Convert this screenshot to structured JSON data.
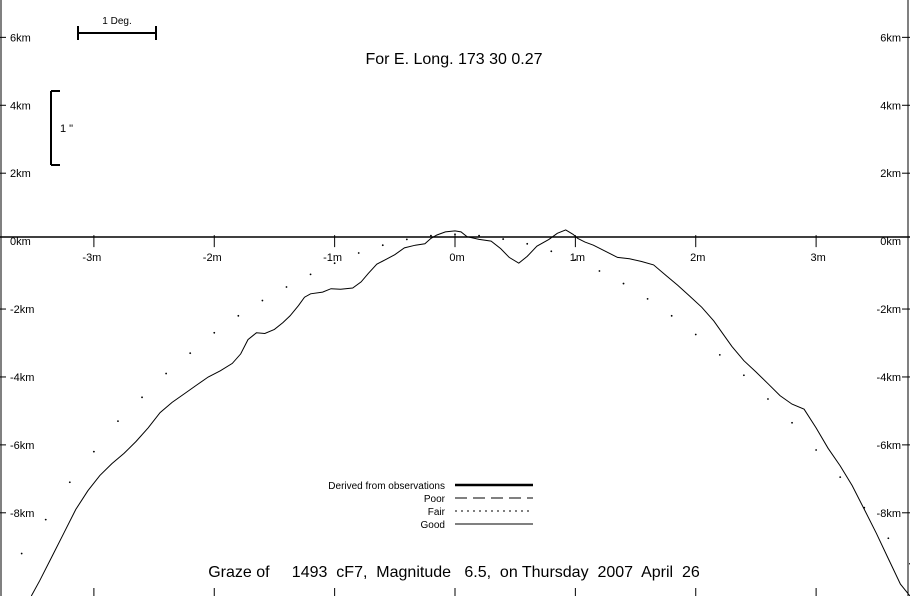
{
  "chart_data": {
    "type": "line",
    "title": "For E. Long.  173 30  0.27",
    "footer": "Graze of     1493  cF7,  Magnitude   6.5,  on Thursday  2007  April  26",
    "scale_bar": {
      "label": "1 Deg."
    },
    "arcsec_bar": {
      "label": "1 \""
    },
    "x_ticks": [
      {
        "v": -3,
        "label": "-3m"
      },
      {
        "v": -2,
        "label": "-2m"
      },
      {
        "v": -1,
        "label": "-1m"
      },
      {
        "v": 0,
        "label": "0m"
      },
      {
        "v": 1,
        "label": "1m"
      },
      {
        "v": 2,
        "label": "2m"
      },
      {
        "v": 3,
        "label": "3m"
      }
    ],
    "y_ticks": [
      {
        "v": 6,
        "label": "6km"
      },
      {
        "v": 4,
        "label": "4km"
      },
      {
        "v": 2,
        "label": "2km"
      },
      {
        "v": 0,
        "label": "0km"
      },
      {
        "v": -2,
        "label": "-2km"
      },
      {
        "v": -4,
        "label": "-4km"
      },
      {
        "v": -6,
        "label": "-6km"
      },
      {
        "v": -8,
        "label": "-8km"
      }
    ],
    "xlim": [
      -3.78,
      3.78
    ],
    "ylim": [
      -10.45,
      7.1
    ],
    "legend": {
      "position": "bottom-center",
      "entries": [
        {
          "label": "Derived from observations",
          "style": "thick"
        },
        {
          "label": "Poor",
          "style": "dashed"
        },
        {
          "label": "Fair",
          "style": "dotted"
        },
        {
          "label": "Good",
          "style": "thin"
        }
      ]
    },
    "series": [
      {
        "style": "thin",
        "points": [
          [
            -3.52,
            -10.45
          ],
          [
            -3.45,
            -10.0
          ],
          [
            -3.35,
            -9.3
          ],
          [
            -3.25,
            -8.6
          ],
          [
            -3.15,
            -7.9
          ],
          [
            -3.05,
            -7.35
          ],
          [
            -2.95,
            -6.9
          ],
          [
            -2.85,
            -6.55
          ],
          [
            -2.75,
            -6.25
          ],
          [
            -2.65,
            -5.9
          ],
          [
            -2.55,
            -5.5
          ],
          [
            -2.45,
            -5.05
          ],
          [
            -2.35,
            -4.75
          ],
          [
            -2.25,
            -4.5
          ],
          [
            -2.15,
            -4.25
          ],
          [
            -2.05,
            -4.0
          ],
          [
            -1.95,
            -3.82
          ],
          [
            -1.85,
            -3.6
          ],
          [
            -1.78,
            -3.32
          ],
          [
            -1.72,
            -2.9
          ],
          [
            -1.65,
            -2.7
          ],
          [
            -1.58,
            -2.72
          ],
          [
            -1.5,
            -2.6
          ],
          [
            -1.43,
            -2.4
          ],
          [
            -1.37,
            -2.2
          ],
          [
            -1.3,
            -1.9
          ],
          [
            -1.25,
            -1.65
          ],
          [
            -1.2,
            -1.55
          ],
          [
            -1.1,
            -1.5
          ],
          [
            -1.03,
            -1.4
          ],
          [
            -0.95,
            -1.42
          ],
          [
            -0.85,
            -1.38
          ],
          [
            -0.78,
            -1.2
          ],
          [
            -0.72,
            -0.95
          ],
          [
            -0.65,
            -0.68
          ],
          [
            -0.58,
            -0.55
          ],
          [
            -0.5,
            -0.4
          ],
          [
            -0.42,
            -0.2
          ],
          [
            -0.33,
            -0.12
          ],
          [
            -0.25,
            -0.08
          ],
          [
            -0.2,
            0.08
          ],
          [
            -0.15,
            0.18
          ],
          [
            -0.08,
            0.27
          ],
          [
            0.0,
            0.3
          ],
          [
            0.05,
            0.27
          ],
          [
            0.1,
            0.13
          ],
          [
            0.2,
            0.05
          ],
          [
            0.3,
            0.0
          ],
          [
            0.38,
            -0.22
          ],
          [
            0.45,
            -0.48
          ],
          [
            0.53,
            -0.65
          ],
          [
            0.6,
            -0.45
          ],
          [
            0.68,
            -0.15
          ],
          [
            0.78,
            0.05
          ],
          [
            0.85,
            0.23
          ],
          [
            0.92,
            0.33
          ],
          [
            0.98,
            0.2
          ],
          [
            1.02,
            0.08
          ],
          [
            1.08,
            -0.03
          ],
          [
            1.15,
            -0.12
          ],
          [
            1.25,
            -0.3
          ],
          [
            1.35,
            -0.48
          ],
          [
            1.45,
            -0.52
          ],
          [
            1.55,
            -0.6
          ],
          [
            1.65,
            -0.7
          ],
          [
            1.75,
            -1.0
          ],
          [
            1.85,
            -1.3
          ],
          [
            1.95,
            -1.62
          ],
          [
            2.05,
            -1.95
          ],
          [
            2.15,
            -2.35
          ],
          [
            2.22,
            -2.7
          ],
          [
            2.3,
            -3.1
          ],
          [
            2.4,
            -3.52
          ],
          [
            2.5,
            -3.85
          ],
          [
            2.6,
            -4.2
          ],
          [
            2.7,
            -4.55
          ],
          [
            2.8,
            -4.8
          ],
          [
            2.9,
            -4.95
          ],
          [
            3.0,
            -5.5
          ],
          [
            3.1,
            -6.1
          ],
          [
            3.2,
            -6.62
          ],
          [
            3.3,
            -7.2
          ],
          [
            3.4,
            -7.9
          ],
          [
            3.5,
            -8.6
          ],
          [
            3.6,
            -9.35
          ],
          [
            3.7,
            -10.1
          ],
          [
            3.78,
            -10.45
          ]
        ]
      },
      {
        "style": "dotted",
        "points": [
          [
            -3.6,
            -9.2
          ],
          [
            -3.4,
            -8.2
          ],
          [
            -3.2,
            -7.1
          ],
          [
            -3.0,
            -6.2
          ],
          [
            -2.8,
            -5.3
          ],
          [
            -2.6,
            -4.6
          ],
          [
            -2.4,
            -3.9
          ],
          [
            -2.2,
            -3.3
          ],
          [
            -2.0,
            -2.7
          ],
          [
            -1.8,
            -2.2
          ],
          [
            -1.6,
            -1.75
          ],
          [
            -1.4,
            -1.35
          ],
          [
            -1.2,
            -0.98
          ],
          [
            -1.0,
            -0.65
          ],
          [
            -0.8,
            -0.35
          ],
          [
            -0.6,
            -0.12
          ],
          [
            -0.4,
            0.05
          ],
          [
            -0.2,
            0.16
          ],
          [
            0.0,
            0.2
          ],
          [
            0.2,
            0.16
          ],
          [
            0.4,
            0.06
          ],
          [
            0.6,
            -0.08
          ],
          [
            0.8,
            -0.3
          ],
          [
            1.0,
            -0.55
          ],
          [
            1.2,
            -0.88
          ],
          [
            1.4,
            -1.25
          ],
          [
            1.6,
            -1.7
          ],
          [
            1.8,
            -2.2
          ],
          [
            2.0,
            -2.75
          ],
          [
            2.2,
            -3.35
          ],
          [
            2.4,
            -3.95
          ],
          [
            2.6,
            -4.65
          ],
          [
            2.8,
            -5.35
          ],
          [
            3.0,
            -6.15
          ],
          [
            3.2,
            -6.95
          ],
          [
            3.4,
            -7.85
          ],
          [
            3.6,
            -8.75
          ],
          [
            3.78,
            -9.5
          ]
        ]
      }
    ]
  }
}
